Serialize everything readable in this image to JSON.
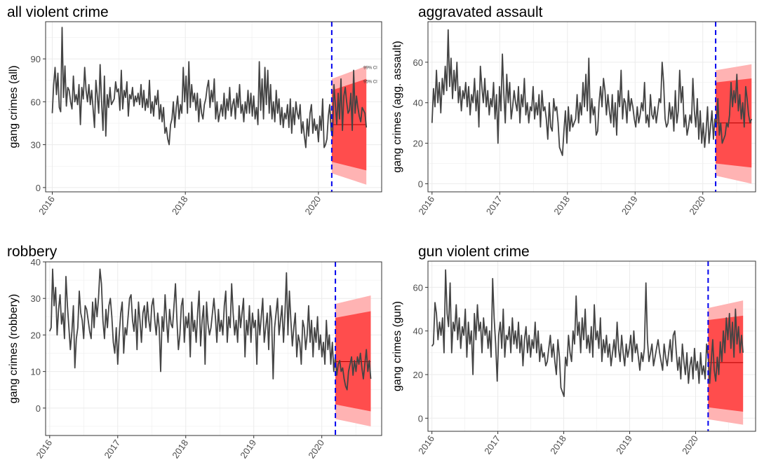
{
  "chart_data": [
    {
      "type": "line",
      "title": "all violent crime",
      "ylabel": "gang crimes (all)",
      "xlabel": "",
      "ylim": [
        -3,
        116
      ],
      "yticks": [
        0,
        30,
        60,
        90
      ],
      "xlim": [
        2015.9,
        2020.95
      ],
      "xticks": [
        2016,
        2018,
        2020
      ],
      "intervention": 2020.2,
      "forecast": {
        "x0": 2020.2,
        "x1": 2020.72,
        "mean": 44,
        "ci95_hi": [
          68,
          76
        ],
        "ci95_lo": [
          18,
          12
        ],
        "ci99_hi": [
          76,
          85
        ],
        "ci99_lo": [
          10,
          2
        ]
      },
      "ci_labels": [
        "99% CI",
        "95% CI"
      ],
      "series": [
        {
          "values": [
            52,
            72,
            84,
            65,
            80,
            56,
            53,
            112,
            63,
            85,
            57,
            70,
            68,
            60,
            55,
            78,
            60,
            65,
            58,
            72,
            44,
            70,
            62,
            84,
            68,
            60,
            72,
            58,
            68,
            55,
            42,
            75,
            64,
            52,
            86,
            60,
            40,
            78,
            36,
            65,
            56,
            70,
            58,
            60,
            62,
            74,
            67,
            69,
            54,
            82,
            55,
            68,
            63,
            74,
            50,
            65,
            62,
            70,
            57,
            64,
            60,
            66,
            58,
            72,
            56,
            68,
            54,
            62,
            56,
            75,
            52,
            60,
            50,
            64,
            58,
            68,
            48,
            58,
            46,
            56,
            38,
            42,
            34,
            30,
            44,
            48,
            60,
            42,
            56,
            64,
            48,
            58,
            52,
            84,
            60,
            78,
            52,
            88,
            56,
            72,
            60,
            66,
            54,
            66,
            46,
            62,
            52,
            48,
            58,
            62,
            70,
            75,
            56,
            68,
            60,
            76,
            48,
            60,
            46,
            52,
            58,
            50,
            66,
            48,
            62,
            54,
            70,
            50,
            58,
            62,
            48,
            66,
            56,
            72,
            52,
            58,
            46,
            60,
            52,
            68,
            52,
            66,
            50,
            64,
            48,
            56,
            44,
            88,
            54,
            76,
            48,
            84,
            58,
            82,
            52,
            72,
            48,
            60,
            46,
            68,
            52,
            62,
            44,
            56,
            42,
            52,
            48,
            58,
            42,
            62,
            38,
            56,
            44,
            60,
            52,
            48,
            58,
            38,
            46,
            36,
            28,
            48,
            36,
            52,
            58,
            38,
            48,
            40,
            44,
            32,
            50,
            40,
            62,
            28,
            30,
            34,
            50,
            58,
            40,
            36,
            72,
            58,
            44,
            66,
            48,
            76,
            40,
            64,
            70,
            60,
            52,
            54,
            66,
            40,
            82,
            52,
            64,
            56,
            50,
            46,
            56,
            54,
            52,
            42
          ]
        }
      ]
    },
    {
      "type": "line",
      "title": "aggravated assault",
      "ylabel": "gang crimes (agg. assault)",
      "xlabel": "",
      "ylim": [
        -4,
        80
      ],
      "yticks": [
        0,
        20,
        40,
        60
      ],
      "xlim": [
        2015.94,
        2020.78
      ],
      "xticks": [
        2016,
        2017,
        2018,
        2019,
        2020
      ],
      "intervention": 2020.19,
      "forecast": {
        "x0": 2020.19,
        "x1": 2020.72,
        "mean": 30,
        "ci95_hi": [
          50,
          52
        ],
        "ci95_lo": [
          10,
          8
        ],
        "ci99_hi": [
          56,
          59
        ],
        "ci99_lo": [
          4,
          0
        ]
      },
      "ci_labels": [],
      "series": [
        {
          "values": [
            30,
            47,
            38,
            56,
            40,
            50,
            35,
            52,
            44,
            58,
            46,
            76,
            48,
            62,
            42,
            56,
            46,
            60,
            40,
            48,
            36,
            46,
            42,
            50,
            38,
            48,
            34,
            44,
            40,
            52,
            36,
            46,
            28,
            58,
            48,
            40,
            52,
            38,
            46,
            34,
            42,
            38,
            50,
            32,
            44,
            20,
            48,
            36,
            64,
            44,
            30,
            54,
            40,
            50,
            32,
            38,
            46,
            40,
            36,
            48,
            30,
            44,
            38,
            52,
            34,
            40,
            30,
            38,
            36,
            48,
            32,
            40,
            34,
            44,
            28,
            46,
            36,
            38,
            32,
            22,
            40,
            28,
            26,
            42,
            36,
            38,
            30,
            18,
            16,
            14,
            26,
            36,
            20,
            38,
            26,
            34,
            28,
            30,
            32,
            44,
            30,
            40,
            34,
            50,
            38,
            54,
            36,
            62,
            30,
            42,
            34,
            38,
            24,
            26,
            40,
            48,
            38,
            52,
            46,
            34,
            44,
            36,
            30,
            44,
            28,
            40,
            24,
            46,
            38,
            56,
            32,
            42,
            40,
            30,
            46,
            36,
            42,
            38,
            32,
            28,
            38,
            30,
            34,
            40,
            36,
            50,
            30,
            34,
            28,
            44,
            34,
            32,
            38,
            30,
            36,
            42,
            40,
            60,
            50,
            32,
            28,
            30,
            40,
            32,
            38,
            26,
            46,
            30,
            36,
            56,
            40,
            48,
            28,
            34,
            24,
            28,
            34,
            30,
            52,
            36,
            28,
            42,
            22,
            36,
            20,
            30,
            18,
            26,
            38,
            20,
            28,
            36,
            22,
            32,
            28,
            42,
            24,
            30,
            20,
            22,
            24,
            30,
            28,
            34,
            50,
            38,
            46,
            40,
            54,
            36,
            44,
            32,
            40,
            28,
            48,
            42,
            34,
            30,
            32
          ]
        }
      ]
    },
    {
      "type": "line",
      "title": "robbery",
      "ylabel": "gang crimes (robbery)",
      "xlabel": "",
      "ylim": [
        -7.5,
        40
      ],
      "yticks": [
        0,
        10,
        20,
        30,
        40
      ],
      "xlim": [
        2015.94,
        2020.88
      ],
      "xticks": [
        2016,
        2017,
        2018,
        2019,
        2020
      ],
      "intervention": 2020.2,
      "forecast": {
        "x0": 2020.2,
        "x1": 2020.72,
        "mean": 12.7,
        "ci95_hi": [
          24.7,
          26.5
        ],
        "ci95_lo": [
          1,
          -0.9
        ],
        "ci99_hi": [
          28.5,
          30.8
        ],
        "ci99_lo": [
          -3,
          -5
        ]
      },
      "ci_labels": [],
      "series": [
        {
          "values": [
            21,
            22,
            38,
            28,
            33,
            20,
            27,
            31,
            23,
            26,
            19,
            36,
            28,
            22,
            16,
            21,
            28,
            11,
            19,
            22,
            32,
            26,
            24,
            19,
            28,
            27,
            24,
            21,
            19,
            29,
            22,
            30,
            25,
            30,
            38,
            34,
            24,
            19,
            27,
            22,
            28,
            30,
            25,
            18,
            15,
            22,
            12,
            20,
            26,
            29,
            15,
            22,
            20,
            25,
            30,
            31,
            24,
            21,
            27,
            16,
            29,
            24,
            18,
            26,
            28,
            22,
            29,
            24,
            21,
            28,
            30,
            24,
            20,
            26,
            22,
            10,
            25,
            21,
            31,
            24,
            18,
            27,
            23,
            22,
            28,
            34,
            24,
            16,
            20,
            28,
            30,
            18,
            25,
            22,
            26,
            14,
            29,
            21,
            24,
            18,
            26,
            32,
            17,
            24,
            28,
            12,
            29,
            23,
            20,
            22,
            26,
            30,
            25,
            18,
            27,
            21,
            24,
            20,
            28,
            32,
            18,
            25,
            22,
            34,
            26,
            20,
            24,
            18,
            28,
            22,
            26,
            30,
            14,
            24,
            20,
            28,
            18,
            26,
            22,
            24,
            12,
            27,
            20,
            25,
            30,
            18,
            22,
            26,
            16,
            28,
            24,
            8,
            22,
            26,
            30,
            20,
            24,
            28,
            18,
            26,
            37,
            20,
            32,
            24,
            17,
            22,
            26,
            14,
            20,
            18,
            12,
            24,
            22,
            16,
            20,
            28,
            18,
            24,
            14,
            22,
            18,
            25,
            16,
            20,
            14,
            18,
            12,
            24,
            16,
            20,
            12,
            18,
            10,
            14,
            9,
            12,
            13,
            10,
            11,
            8,
            6,
            5,
            10,
            12,
            14,
            9,
            13,
            10,
            14,
            12,
            15,
            11,
            8,
            12,
            16,
            10,
            13,
            8
          ]
        }
      ]
    },
    {
      "type": "line",
      "title": "gun violent crime",
      "ylabel": "gang crimes (gun)",
      "xlabel": "",
      "ylim": [
        -6,
        72
      ],
      "yticks": [
        0,
        20,
        40,
        60
      ],
      "xlim": [
        2015.94,
        2020.91
      ],
      "xticks": [
        2016,
        2017,
        2018,
        2019,
        2020
      ],
      "intervention": 2020.19,
      "forecast": {
        "x0": 2020.19,
        "x1": 2020.72,
        "mean": 25.5,
        "ci95_hi": [
          45,
          47
        ],
        "ci95_lo": [
          5,
          3
        ],
        "ci99_hi": [
          50.5,
          54
        ],
        "ci99_lo": [
          -0.5,
          -3
        ]
      },
      "ci_labels": [],
      "series": [
        {
          "values": [
            33,
            34,
            53,
            48,
            36,
            44,
            38,
            46,
            30,
            68,
            48,
            42,
            62,
            30,
            44,
            40,
            52,
            36,
            46,
            32,
            42,
            38,
            50,
            28,
            44,
            34,
            40,
            20,
            48,
            36,
            52,
            40,
            44,
            30,
            46,
            38,
            42,
            32,
            40,
            28,
            64,
            46,
            34,
            17,
            38,
            44,
            32,
            50,
            28,
            38,
            36,
            42,
            30,
            46,
            34,
            40,
            32,
            44,
            30,
            38,
            24,
            36,
            42,
            30,
            38,
            28,
            36,
            32,
            44,
            30,
            40,
            26,
            34,
            28,
            30,
            24,
            26,
            32,
            38,
            28,
            34,
            26,
            20,
            36,
            28,
            14,
            12,
            10,
            28,
            24,
            38,
            30,
            26,
            40,
            34,
            56,
            38,
            44,
            30,
            46,
            36,
            50,
            32,
            38,
            30,
            42,
            28,
            52,
            36,
            40,
            32,
            46,
            26,
            36,
            30,
            38,
            28,
            34,
            24,
            30,
            36,
            28,
            44,
            32,
            26,
            38,
            30,
            24,
            34,
            28,
            32,
            38,
            26,
            40,
            30,
            34,
            28,
            22,
            30,
            26,
            32,
            62,
            36,
            26,
            30,
            34,
            24,
            28,
            32,
            36,
            30,
            26,
            22,
            34,
            28,
            24,
            30,
            36,
            26,
            38,
            40,
            30,
            22,
            28,
            18,
            34,
            26,
            20,
            30,
            16,
            24,
            28,
            18,
            32,
            22,
            26,
            16,
            30,
            20,
            24,
            18,
            34,
            28,
            16,
            26,
            36,
            22,
            17,
            28,
            20,
            35,
            26,
            40,
            30,
            46,
            36,
            48,
            32,
            44,
            28,
            50,
            34,
            42,
            30,
            38,
            30
          ]
        }
      ]
    }
  ]
}
